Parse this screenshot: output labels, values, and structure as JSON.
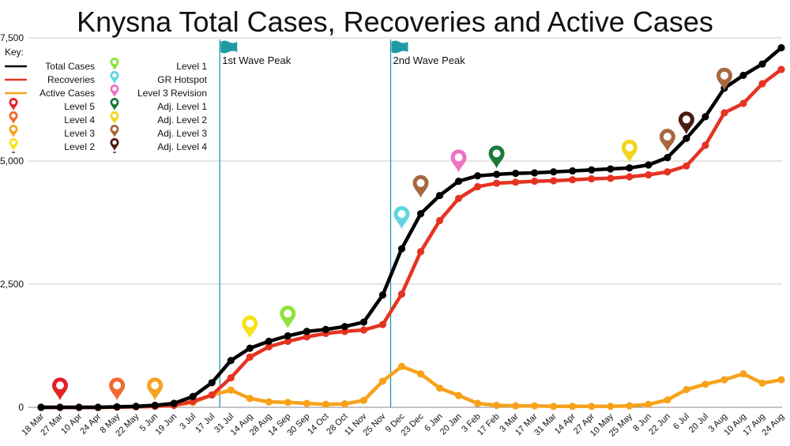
{
  "chart_data": {
    "type": "line",
    "title": "Knysna Total Cases, Recoveries and Active Cases",
    "xlabel": "",
    "ylabel": "",
    "ylim": [
      0,
      7500
    ],
    "yticks": [
      0,
      2500,
      5000,
      7500
    ],
    "ytick_labels": [
      "0",
      "2,500",
      "5,000",
      "7,500"
    ],
    "grid": true,
    "legend_title": "Key:",
    "legend_position": "top-left",
    "categories": [
      "18 Mar",
      "27 Mar",
      "10 Apr",
      "24 Apr",
      "8 May",
      "22 May",
      "5 Jun",
      "19 Jun",
      "3 Jul",
      "17 Jul",
      "31 Jul",
      "14 Aug",
      "28 Aug",
      "14 Sep",
      "30 Sep",
      "14 Oct",
      "28 Oct",
      "11 Nov",
      "25 Nov",
      "9 Dec",
      "23 Dec",
      "6 Jan",
      "20 Jan",
      "3 Feb",
      "17 Feb",
      "3 Mar",
      "17 Mar",
      "31 Mar",
      "14 Apr",
      "27 Apr",
      "10 May",
      "25 May",
      "8 Jun",
      "22 Jun",
      "6 Jul",
      "20 Jul",
      "3 Aug",
      "10 Aug",
      "17 Aug",
      "24 Aug"
    ],
    "series": [
      {
        "name": "Total Cases",
        "color": "#000000",
        "values": [
          0,
          0,
          0,
          0,
          10,
          20,
          40,
          80,
          220,
          500,
          950,
          1200,
          1340,
          1450,
          1540,
          1580,
          1640,
          1730,
          2280,
          3220,
          3930,
          4300,
          4590,
          4700,
          4730,
          4750,
          4760,
          4780,
          4800,
          4820,
          4840,
          4860,
          4920,
          5070,
          5460,
          5900,
          6480,
          6740,
          6970,
          7300
        ]
      },
      {
        "name": "Recoveries",
        "color": "#E53322",
        "values": [
          0,
          0,
          0,
          0,
          5,
          10,
          20,
          40,
          120,
          250,
          600,
          1020,
          1230,
          1340,
          1430,
          1500,
          1540,
          1570,
          1680,
          2300,
          3160,
          3790,
          4240,
          4480,
          4550,
          4570,
          4590,
          4600,
          4620,
          4640,
          4650,
          4680,
          4720,
          4780,
          4900,
          5320,
          5980,
          6170,
          6570,
          6860
        ]
      },
      {
        "name": "Active Cases",
        "color": "#F7A21B",
        "values": [
          0,
          0,
          0,
          0,
          5,
          10,
          20,
          40,
          100,
          250,
          350,
          180,
          110,
          100,
          80,
          60,
          70,
          140,
          530,
          830,
          680,
          390,
          240,
          80,
          40,
          30,
          30,
          20,
          20,
          20,
          20,
          30,
          60,
          150,
          360,
          470,
          560,
          680,
          490,
          560
        ]
      }
    ],
    "annotations": [
      {
        "label": "1st Wave Peak",
        "x": "31 Jul",
        "color": "#1F9AA5"
      },
      {
        "label": "2nd Wave Peak",
        "x": "9 Dec",
        "color": "#1F9AA5"
      }
    ],
    "level_key": [
      {
        "name": "Level 5",
        "color": "#E32227"
      },
      {
        "name": "Level 4",
        "color": "#EF6A2F"
      },
      {
        "name": "Level 3",
        "color": "#F6A21D"
      },
      {
        "name": "Level 2",
        "color": "#F4E21A"
      },
      {
        "name": "Level 1",
        "color": "#8EE23B"
      },
      {
        "name": "GR Hotspot",
        "color": "#5FD6E0"
      },
      {
        "name": "Level 3 Revision",
        "color": "#EE72C4"
      },
      {
        "name": "Adj. Level 1",
        "color": "#1B7A38"
      },
      {
        "name": "Adj. Level 2",
        "color": "#F2D51C"
      },
      {
        "name": "Adj. Level 3",
        "color": "#A8673F"
      },
      {
        "name": "Adj. Level 4",
        "color": "#4A1B0F"
      }
    ],
    "level_markers": [
      {
        "level": "Level 5",
        "x": "27 Mar",
        "y": 140,
        "color": "#E32227"
      },
      {
        "level": "Level 4",
        "x": "8 May",
        "y": 140,
        "color": "#EF6A2F"
      },
      {
        "level": "Level 3",
        "x": "5 Jun",
        "y": 140,
        "color": "#F6A21D"
      },
      {
        "level": "Level 2",
        "x": "14 Aug",
        "y": 1400,
        "color": "#F4E21A"
      },
      {
        "level": "Level 1",
        "x": "14 Sep",
        "y": 1600,
        "color": "#8EE23B"
      },
      {
        "level": "GR Hotspot",
        "x": "9 Dec",
        "y": 3620,
        "color": "#5FD6E0"
      },
      {
        "level": "Adj. Level 3",
        "x": "23 Dec",
        "y": 4250,
        "color": "#A8673F"
      },
      {
        "level": "Level 3 Revision",
        "x": "20 Jan",
        "y": 4770,
        "color": "#EE72C4"
      },
      {
        "level": "Adj. Level 1",
        "x": "17 Feb",
        "y": 4850,
        "color": "#1B7A38"
      },
      {
        "level": "Adj. Level 2",
        "x": "25 May",
        "y": 4970,
        "color": "#F2D51C"
      },
      {
        "level": "Adj. Level 3",
        "x": "22 Jun",
        "y": 5190,
        "color": "#A8673F"
      },
      {
        "level": "Adj. Level 4",
        "x": "6 Jul",
        "y": 5540,
        "color": "#4A1B0F"
      },
      {
        "level": "Adj. Level 3",
        "x": "3 Aug",
        "y": 6430,
        "color": "#A8673F"
      }
    ]
  }
}
